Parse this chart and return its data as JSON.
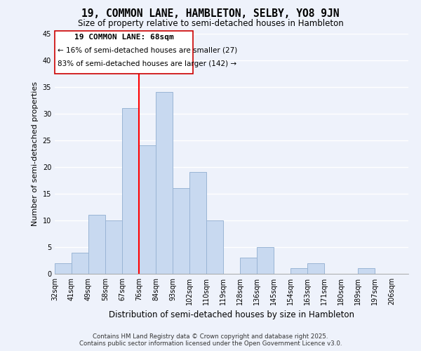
{
  "title": "19, COMMON LANE, HAMBLETON, SELBY, YO8 9JN",
  "subtitle": "Size of property relative to semi-detached houses in Hambleton",
  "xlabel": "Distribution of semi-detached houses by size in Hambleton",
  "ylabel": "Number of semi-detached properties",
  "bin_labels": [
    "32sqm",
    "41sqm",
    "49sqm",
    "58sqm",
    "67sqm",
    "76sqm",
    "84sqm",
    "93sqm",
    "102sqm",
    "110sqm",
    "119sqm",
    "128sqm",
    "136sqm",
    "145sqm",
    "154sqm",
    "163sqm",
    "171sqm",
    "180sqm",
    "189sqm",
    "197sqm",
    "206sqm"
  ],
  "bar_values": [
    2,
    4,
    11,
    10,
    31,
    24,
    34,
    16,
    19,
    10,
    0,
    3,
    5,
    0,
    1,
    2,
    0,
    0,
    1,
    0,
    0
  ],
  "bar_color": "#c8d9f0",
  "bar_edge_color": "#9ab5d5",
  "vline_color": "red",
  "vline_index": 4,
  "ylim": [
    0,
    45
  ],
  "yticks": [
    0,
    5,
    10,
    15,
    20,
    25,
    30,
    35,
    40,
    45
  ],
  "annotation_title": "19 COMMON LANE: 68sqm",
  "annotation_line1": "← 16% of semi-detached houses are smaller (27)",
  "annotation_line2": "83% of semi-detached houses are larger (142) →",
  "annotation_box_color": "white",
  "annotation_box_edge": "#cc0000",
  "footer_line1": "Contains HM Land Registry data © Crown copyright and database right 2025.",
  "footer_line2": "Contains public sector information licensed under the Open Government Licence v3.0.",
  "background_color": "#eef2fb",
  "grid_color": "white"
}
